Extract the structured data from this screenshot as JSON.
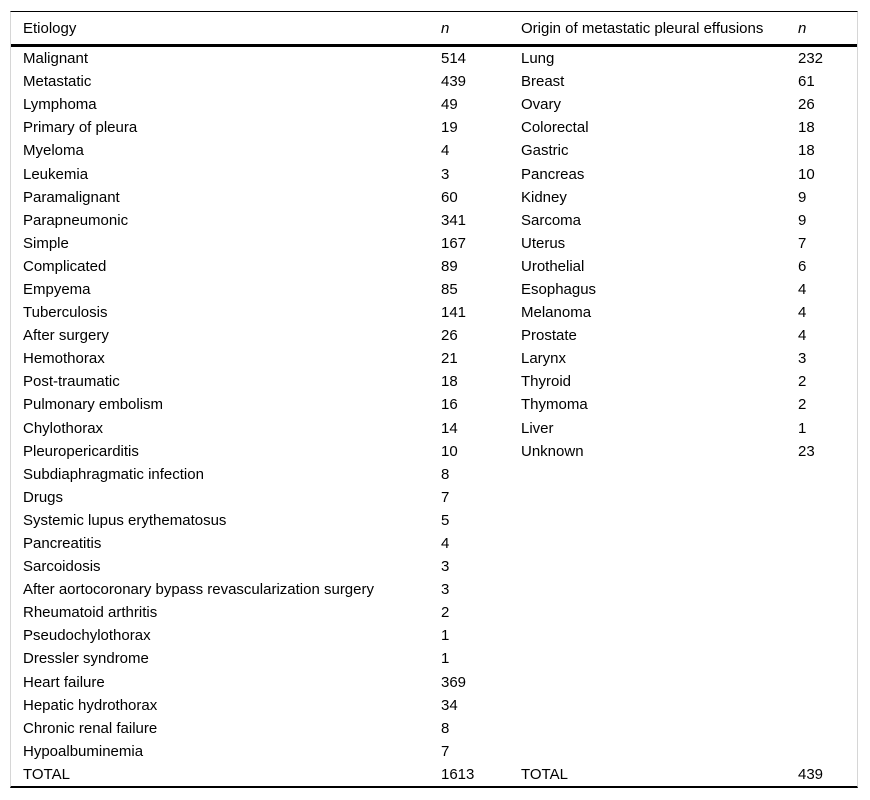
{
  "table": {
    "header": {
      "etiology_label": "Etiology",
      "etiology_n_label": "n",
      "origin_label": "Origin of metastatic pleural effusions",
      "origin_n_label": "n"
    },
    "rows": [
      {
        "etiology": "Malignant",
        "n1": "514",
        "origin": "Lung",
        "n2": "232"
      },
      {
        "etiology": "Metastatic",
        "n1": "439",
        "origin": "Breast",
        "n2": "61"
      },
      {
        "etiology": "Lymphoma",
        "n1": "49",
        "origin": "Ovary",
        "n2": "26"
      },
      {
        "etiology": "Primary of pleura",
        "n1": "19",
        "origin": "Colorectal",
        "n2": "18"
      },
      {
        "etiology": "Myeloma",
        "n1": "4",
        "origin": "Gastric",
        "n2": "18"
      },
      {
        "etiology": "Leukemia",
        "n1": "3",
        "origin": "Pancreas",
        "n2": "10"
      },
      {
        "etiology": "Paramalignant",
        "n1": "60",
        "origin": "Kidney",
        "n2": "9"
      },
      {
        "etiology": "Parapneumonic",
        "n1": "341",
        "origin": "Sarcoma",
        "n2": "9"
      },
      {
        "etiology": "Simple",
        "n1": "167",
        "origin": "Uterus",
        "n2": "7"
      },
      {
        "etiology": "Complicated",
        "n1": "89",
        "origin": "Urothelial",
        "n2": "6"
      },
      {
        "etiology": "Empyema",
        "n1": "85",
        "origin": "Esophagus",
        "n2": "4"
      },
      {
        "etiology": "Tuberculosis",
        "n1": "141",
        "origin": "Melanoma",
        "n2": "4"
      },
      {
        "etiology": "After surgery",
        "n1": "26",
        "origin": "Prostate",
        "n2": "4"
      },
      {
        "etiology": "Hemothorax",
        "n1": "21",
        "origin": "Larynx",
        "n2": "3"
      },
      {
        "etiology": "Post-traumatic",
        "n1": "18",
        "origin": "Thyroid",
        "n2": "2"
      },
      {
        "etiology": "Pulmonary embolism",
        "n1": "16",
        "origin": "Thymoma",
        "n2": "2"
      },
      {
        "etiology": "Chylothorax",
        "n1": "14",
        "origin": "Liver",
        "n2": "1"
      },
      {
        "etiology": "Pleuropericarditis",
        "n1": "10",
        "origin": "Unknown",
        "n2": "23"
      },
      {
        "etiology": "Subdiaphragmatic infection",
        "n1": "8",
        "origin": "",
        "n2": ""
      },
      {
        "etiology": "Drugs",
        "n1": "7",
        "origin": "",
        "n2": ""
      },
      {
        "etiology": "Systemic lupus erythematosus",
        "n1": "5",
        "origin": "",
        "n2": ""
      },
      {
        "etiology": "Pancreatitis",
        "n1": "4",
        "origin": "",
        "n2": ""
      },
      {
        "etiology": "Sarcoidosis",
        "n1": "3",
        "origin": "",
        "n2": ""
      },
      {
        "etiology": "After aortocoronary bypass revascularization surgery",
        "n1": "3",
        "origin": "",
        "n2": ""
      },
      {
        "etiology": "Rheumatoid arthritis",
        "n1": "2",
        "origin": "",
        "n2": ""
      },
      {
        "etiology": "Pseudochylothorax",
        "n1": "1",
        "origin": "",
        "n2": ""
      },
      {
        "etiology": "Dressler syndrome",
        "n1": "1",
        "origin": "",
        "n2": ""
      },
      {
        "etiology": "Heart failure",
        "n1": "369",
        "origin": "",
        "n2": ""
      },
      {
        "etiology": "Hepatic hydrothorax",
        "n1": "34",
        "origin": "",
        "n2": ""
      },
      {
        "etiology": "Chronic renal failure",
        "n1": "8",
        "origin": "",
        "n2": ""
      },
      {
        "etiology": "Hypoalbuminemia",
        "n1": "7",
        "origin": "",
        "n2": ""
      },
      {
        "etiology": "TOTAL",
        "n1": "1613",
        "origin": "TOTAL",
        "n2": "439"
      }
    ],
    "text_color": "#000000",
    "rule_color": "#000000",
    "edge_border_color": "#d6d6d6"
  }
}
